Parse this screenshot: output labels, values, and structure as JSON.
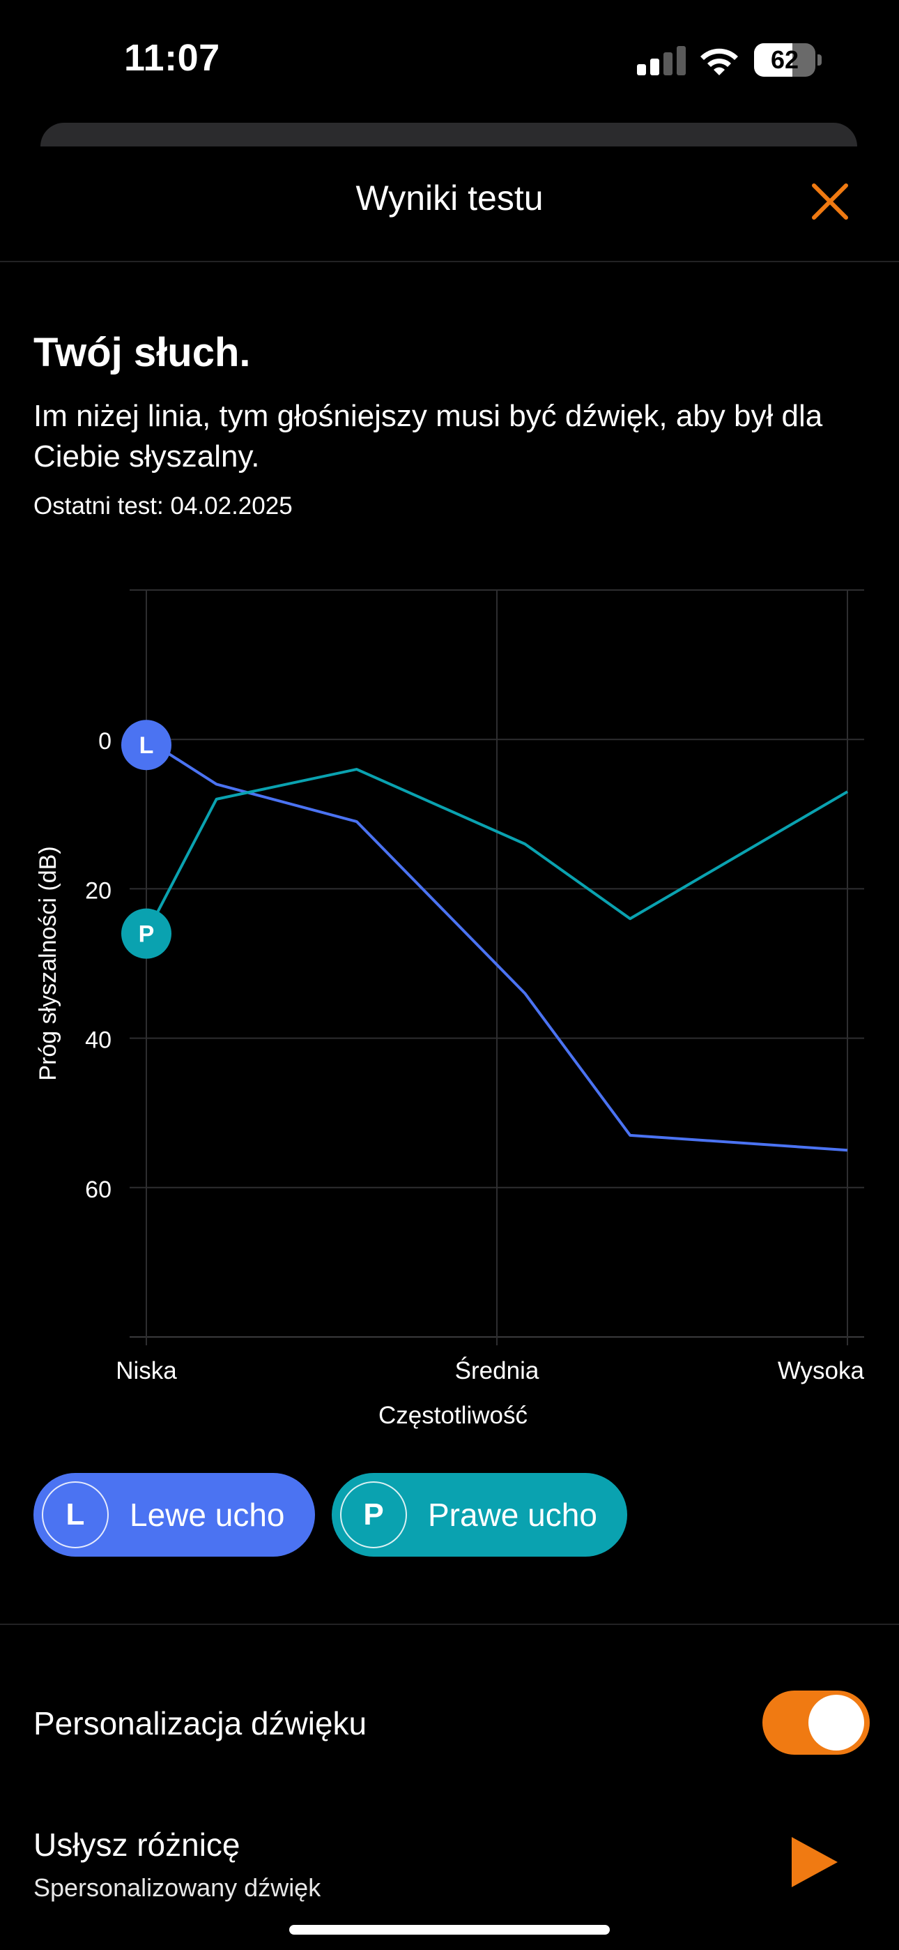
{
  "status_bar": {
    "time": "11:07",
    "battery_level": "62",
    "battery_fraction": 0.62
  },
  "sheet": {
    "title": "Wyniki testu",
    "close_icon": "close-x-icon",
    "accent_color": "#f07a12"
  },
  "intro": {
    "heading": "Twój słuch.",
    "description": "Im niżej linia, tym głośniejszy musi być dźwięk, aby był dla Ciebie słyszalny.",
    "last_test_label": "Ostatni test:",
    "last_test_date": "04.02.2025"
  },
  "chart_data": {
    "type": "line",
    "xlabel": "Częstotliwość",
    "ylabel": "Próg słyszalności (dB)",
    "x_ticks": [
      "Niska",
      "Średnia",
      "Wysoka"
    ],
    "x": [
      0,
      0.1,
      0.3,
      0.54,
      0.69,
      1.0
    ],
    "ylim": [
      -20,
      80
    ],
    "y_ticks": [
      0,
      20,
      40,
      60
    ],
    "y_inverted": true,
    "grid": true,
    "series": [
      {
        "name": "Lewe ucho",
        "marker": "L",
        "color": "#4b73f2",
        "values": [
          0,
          6,
          11,
          34,
          53,
          55
        ]
      },
      {
        "name": "Prawe ucho",
        "marker": "P",
        "color": "#0aa2b0",
        "values": [
          26,
          8,
          4,
          14,
          24,
          7
        ]
      }
    ]
  },
  "legend": {
    "left": {
      "badge": "L",
      "label": "Lewe ucho",
      "color": "#4b73f2"
    },
    "right": {
      "badge": "P",
      "label": "Prawe ucho",
      "color": "#0aa2b0"
    }
  },
  "settings": {
    "personalization_label": "Personalizacja dźwięku",
    "personalization_on": true,
    "hear_difference_label": "Usłysz różnicę",
    "hear_difference_sub": "Spersonalizowany dźwięk",
    "play_icon": "play-icon"
  }
}
